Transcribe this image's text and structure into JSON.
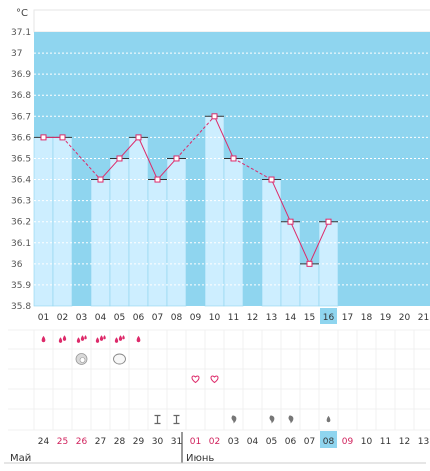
{
  "chart_data": {
    "type": "bar",
    "unit_label": "°C",
    "categories": [
      "01",
      "02",
      "03",
      "04",
      "05",
      "06",
      "07",
      "08",
      "09",
      "10",
      "11",
      "12",
      "13",
      "14",
      "15",
      "16",
      "17",
      "18",
      "19",
      "20",
      "21"
    ],
    "values": [
      36.6,
      36.6,
      null,
      36.4,
      36.5,
      36.6,
      36.4,
      36.5,
      null,
      36.7,
      36.5,
      null,
      36.4,
      36.2,
      36.0,
      36.2,
      null,
      null,
      null,
      null,
      null
    ],
    "ylim": [
      35.8,
      37.1
    ],
    "y_ticks": [
      "35.8",
      "35.9",
      "36",
      "36.1",
      "36.2",
      "36.3",
      "36.4",
      "36.5",
      "36.6",
      "36.7",
      "36.8",
      "36.9",
      "37",
      "37.1"
    ],
    "y_tick_values": [
      35.8,
      35.9,
      36.0,
      36.1,
      36.2,
      36.3,
      36.4,
      36.5,
      36.6,
      36.7,
      36.8,
      36.9,
      37.0,
      37.1
    ],
    "grid": true,
    "highlight_category": "16",
    "colors": {
      "plot_bg": "#8fd5ef",
      "bar_fill": "#cdeeff",
      "line": "#dd2a6a",
      "highlight": "#8fd5ef",
      "empty_top": "#ffffff"
    }
  },
  "calendar": {
    "days": [
      {
        "label": "24",
        "red": false
      },
      {
        "label": "25",
        "red": true
      },
      {
        "label": "26",
        "red": true
      },
      {
        "label": "27",
        "red": false
      },
      {
        "label": "28",
        "red": false
      },
      {
        "label": "29",
        "red": false
      },
      {
        "label": "30",
        "red": false
      },
      {
        "label": "31",
        "red": false
      },
      {
        "label": "01",
        "red": true
      },
      {
        "label": "02",
        "red": true
      },
      {
        "label": "03",
        "red": false
      },
      {
        "label": "04",
        "red": false
      },
      {
        "label": "05",
        "red": false
      },
      {
        "label": "06",
        "red": false
      },
      {
        "label": "07",
        "red": false
      },
      {
        "label": "08",
        "red": false
      },
      {
        "label": "09",
        "red": true
      },
      {
        "label": "10",
        "red": false
      },
      {
        "label": "11",
        "red": false
      },
      {
        "label": "12",
        "red": false
      },
      {
        "label": "13",
        "red": false
      }
    ],
    "highlight_index": 15,
    "month_left": "Май",
    "month_right": "Июнь",
    "month_split_index": 8
  },
  "symbol_rows": {
    "menstruation": [
      "drop-1",
      "drop-2",
      "drop-3",
      "drop-3",
      "drop-3",
      "drop-1",
      null,
      null,
      null,
      null,
      null,
      null,
      null,
      null,
      null,
      null,
      null,
      null,
      null,
      null,
      null
    ],
    "cervical": [
      null,
      null,
      "mucus-icon",
      null,
      "cloud-icon",
      null,
      null,
      null,
      null,
      null,
      null,
      null,
      null,
      null,
      null,
      null,
      null,
      null,
      null,
      null,
      null
    ],
    "intercourse": [
      null,
      null,
      null,
      null,
      null,
      null,
      null,
      null,
      "heart-icon",
      "heart-icon",
      null,
      null,
      null,
      null,
      null,
      null,
      null,
      null,
      null,
      null,
      null
    ],
    "empty": [
      null,
      null,
      null,
      null,
      null,
      null,
      null,
      null,
      null,
      null,
      null,
      null,
      null,
      null,
      null,
      null,
      null,
      null,
      null,
      null,
      null
    ],
    "tests": [
      null,
      null,
      null,
      null,
      null,
      null,
      "test-icon",
      "test-icon",
      null,
      null,
      "comma-icon",
      null,
      "comma-icon",
      "comma-icon",
      null,
      "grey-drop-icon",
      null,
      null,
      null,
      null,
      null
    ]
  }
}
